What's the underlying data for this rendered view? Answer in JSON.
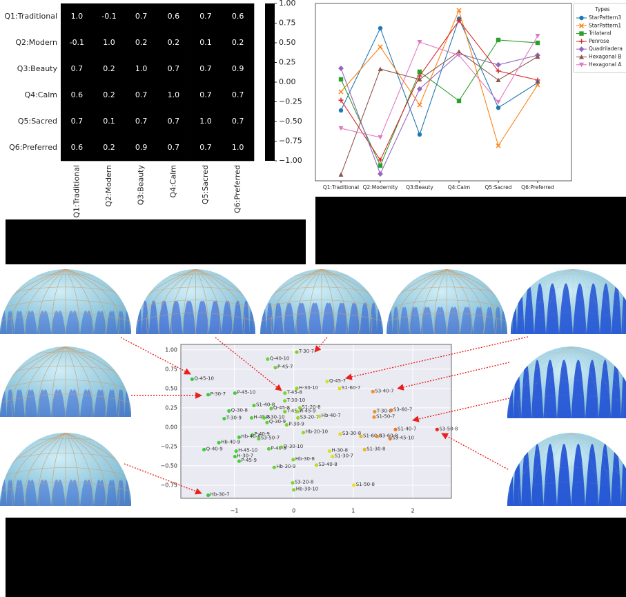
{
  "chart_data": [
    {
      "type": "heatmap",
      "rows": [
        "Q1:Traditional",
        "Q2:Modern",
        "Q3:Beauty",
        "Q4:Calm",
        "Q5:Sacred",
        "Q6:Preferred"
      ],
      "columns": [
        "Q1:Traditional",
        "Q2:Modern",
        "Q3:Beauty",
        "Q4:Calm",
        "Q5:Sacred",
        "Q6:Preferred"
      ],
      "values": [
        [
          1,
          -0.1,
          0.7,
          0.6,
          0.7,
          0.6
        ],
        [
          -0.1,
          1,
          0.2,
          0.2,
          0.1,
          0.2
        ],
        [
          0.7,
          0.2,
          1,
          0.7,
          0.7,
          0.9
        ],
        [
          0.6,
          0.2,
          0.7,
          1,
          0.7,
          0.7
        ],
        [
          0.7,
          0.1,
          0.7,
          0.7,
          1,
          0.7
        ],
        [
          0.6,
          0.2,
          0.9,
          0.7,
          0.7,
          1
        ]
      ],
      "value_labels": [
        [
          "1.0",
          "-0.1",
          "0.7",
          "0.6",
          "0.7",
          "0.6"
        ],
        [
          "-0.1",
          "1.0",
          "0.2",
          "0.2",
          "0.1",
          "0.2"
        ],
        [
          "0.7",
          "0.2",
          "1.0",
          "0.7",
          "0.7",
          "0.9"
        ],
        [
          "0.6",
          "0.2",
          "0.7",
          "1.0",
          "0.7",
          "0.7"
        ],
        [
          "0.7",
          "0.1",
          "0.7",
          "0.7",
          "1.0",
          "0.7"
        ],
        [
          "0.6",
          "0.2",
          "0.9",
          "0.7",
          "0.7",
          "1.0"
        ]
      ],
      "colormap": "coolwarm",
      "zlim": [
        -1,
        1
      ],
      "zticks": [
        {
          "value": 1,
          "label": "1.00"
        },
        {
          "value": 0.75,
          "label": "0.75"
        },
        {
          "value": 0.5,
          "label": "0.50"
        },
        {
          "value": 0.25,
          "label": "0.25"
        },
        {
          "value": 0,
          "label": "0.00"
        },
        {
          "value": -0.25,
          "label": "−0.25"
        },
        {
          "value": -0.5,
          "label": "−0.50"
        },
        {
          "value": -0.75,
          "label": "−0.75"
        },
        {
          "value": -1,
          "label": "−1.00"
        }
      ]
    },
    {
      "type": "line",
      "categories": [
        "Q1:Traditional",
        "Q2:Modernity",
        "Q3:Beauty",
        "Q4:Calm",
        "Q5:Sacred",
        "Q6:Preferred"
      ],
      "ylim": [
        0,
        100
      ],
      "legend_title": "Types",
      "legend": "outside right",
      "series": [
        {
          "name": "StarPattern3",
          "color": "#1f77b4",
          "marker": "circle",
          "values": [
            39.7,
            86.0,
            26.1,
            91.4,
            41.2,
            55.3
          ]
        },
        {
          "name": "StarPattern1",
          "color": "#ff7f0e",
          "marker": "x",
          "values": [
            50.2,
            75.5,
            42.8,
            96.1,
            19.8,
            54.1
          ]
        },
        {
          "name": "Trilateral",
          "color": "#2ca02c",
          "marker": "square",
          "values": [
            57.2,
            8.6,
            61.5,
            45.1,
            79.4,
            77.8
          ]
        },
        {
          "name": "Penrose",
          "color": "#d62728",
          "marker": "plus",
          "values": [
            45.5,
            11.7,
            59.1,
            90.3,
            61.9,
            56.8
          ]
        },
        {
          "name": "Quadriladera",
          "color": "#9467bd",
          "marker": "diamond",
          "values": [
            63.4,
            3.9,
            51.8,
            71.6,
            65.4,
            70.8
          ]
        },
        {
          "name": "Hexagonal B",
          "color": "#8c564b",
          "marker": "triangle-up",
          "values": [
            3.5,
            63.0,
            57.2,
            72.8,
            56.8,
            70.0
          ]
        },
        {
          "name": "Hexagonal A",
          "color": "#e377c2",
          "marker": "triangle-down",
          "values": [
            29.6,
            24.5,
            78.2,
            70.8,
            44.4,
            81.7
          ]
        }
      ]
    },
    {
      "type": "scatter",
      "xlim": [
        -1.9,
        2.65
      ],
      "ylim": [
        -0.92,
        1.07
      ],
      "xticks": [
        {
          "value": -1,
          "label": "−1"
        },
        0,
        1,
        2
      ],
      "yticks": [
        {
          "value": 1,
          "label": "1.00"
        },
        {
          "value": 0.75,
          "label": "0.75"
        },
        {
          "value": 0.5,
          "label": "0.50"
        },
        {
          "value": 0.25,
          "label": "0.25"
        },
        {
          "value": 0,
          "label": "0.00"
        },
        {
          "value": -0.25,
          "label": "−0.25"
        },
        {
          "value": -0.5,
          "label": "−0.50"
        },
        {
          "value": -0.75,
          "label": "−0.75"
        }
      ],
      "grid": true,
      "point_labels": [
        "T-30-7",
        "Q-40-10",
        "P-45-7",
        "Q-45-10",
        "Q-45-7",
        "H-30-10",
        "T-45-8",
        "S1-60-7",
        "S3-40-7",
        "P-30-7",
        "P-45-10",
        "T-30-10",
        "S1-40-8",
        "S1-20-8",
        "Q-30-8",
        "Q-45-8",
        "T-45-7",
        "H-45-9",
        "S3-20-7",
        "Hb-40-7",
        "T-30-9",
        "H-45-8",
        "P-30-10",
        "Q-30-9",
        "T-30-8",
        "S3-60-7",
        "S1-50-7",
        "S3-50-8",
        "S1-40-7",
        "S1-60-8",
        "S3-60-8",
        "S3-45-10",
        "P-30-9",
        "Hb-20-10",
        "S3-30-8",
        "P-40-9",
        "Hb-40-8",
        "S3-50-7",
        "Hb-40-9",
        "Q-40-9",
        "P-40-8",
        "Q-30-10",
        "H-45-10",
        "H-30-7",
        "P-45-9",
        "H-30-8",
        "S1-30-7",
        "S1-30-8",
        "Hb-30-8",
        "S3-40-8",
        "Hb-30-9",
        "S3-20-8",
        "Hb-30-10",
        "S1-50-8",
        "Hb-30-7"
      ],
      "x": [
        0.05,
        -0.44,
        -0.31,
        -1.71,
        0.56,
        0.05,
        -0.15,
        0.77,
        1.33,
        -1.44,
        -0.99,
        -0.15,
        -0.67,
        0.1,
        -1.09,
        -0.38,
        -0.15,
        0.06,
        0.07,
        0.43,
        -1.17,
        -0.71,
        -0.5,
        -0.45,
        1.36,
        1.64,
        1.35,
        2.41,
        1.71,
        1.13,
        1.4,
        1.62,
        -0.12,
        0.16,
        0.78,
        -0.7,
        -0.92,
        -0.59,
        -1.26,
        -1.51,
        -0.42,
        -0.21,
        -0.97,
        -0.99,
        -0.92,
        0.6,
        0.65,
        1.19,
        -0.01,
        0.38,
        -0.33,
        -0.02,
        0.0,
        1.01,
        -1.44
      ],
      "values": [
        0.97,
        0.88,
        0.77,
        0.62,
        0.59,
        0.5,
        0.44,
        0.5,
        0.46,
        0.42,
        0.44,
        0.34,
        0.28,
        0.25,
        0.21,
        0.24,
        0.2,
        0.2,
        0.12,
        0.14,
        0.11,
        0.12,
        0.12,
        0.06,
        0.2,
        0.22,
        0.13,
        -0.03,
        -0.03,
        -0.12,
        -0.12,
        -0.15,
        0.03,
        -0.07,
        -0.09,
        -0.1,
        -0.13,
        -0.15,
        -0.2,
        -0.29,
        -0.28,
        -0.26,
        -0.31,
        -0.38,
        -0.44,
        -0.31,
        -0.38,
        -0.29,
        -0.42,
        -0.49,
        -0.52,
        -0.72,
        -0.81,
        -0.75,
        -0.88
      ],
      "colors": [
        "#7ed321",
        "#5fd83a",
        "#6dd630",
        "#2ecc40",
        "#d4e02a",
        "#8ed828",
        "#7ad42c",
        "#e8d820",
        "#f0902a",
        "#34cc3c",
        "#3ecf38",
        "#7ad42c",
        "#52d234",
        "#94d828",
        "#3ecf38",
        "#5fd434",
        "#76d42e",
        "#8ed828",
        "#90d828",
        "#c0dc28",
        "#3ecf38",
        "#52d234",
        "#5ad234",
        "#5ad234",
        "#f0902a",
        "#f07a24",
        "#f0902a",
        "#e8281c",
        "#f07424",
        "#f0b428",
        "#f08a24",
        "#f07a24",
        "#7ad42c",
        "#98d828",
        "#e8d820",
        "#52d234",
        "#44d036",
        "#56d234",
        "#38cd3a",
        "#32cc3c",
        "#5ad234",
        "#70d42e",
        "#44d036",
        "#44d036",
        "#44d036",
        "#d8e028",
        "#dde028",
        "#f0b428",
        "#84d62a",
        "#bcdc28",
        "#64d432",
        "#84d62a",
        "#84d62a",
        "#f0e020",
        "#34cc3c"
      ]
    }
  ]
}
